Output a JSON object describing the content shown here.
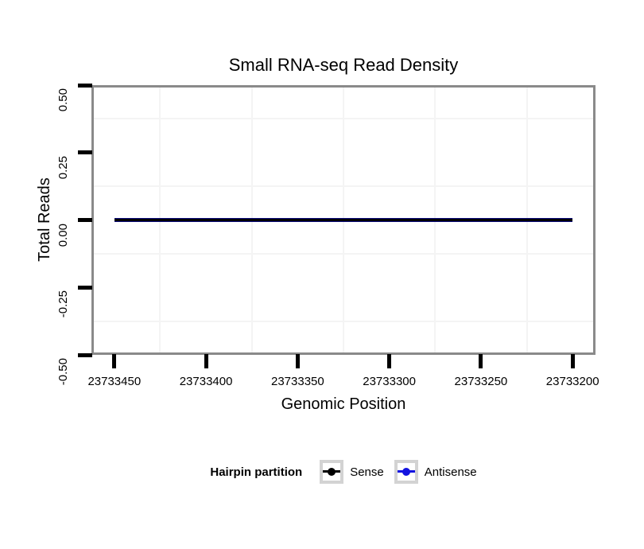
{
  "title": "Small RNA-seq Read Density",
  "chart_data": {
    "type": "line",
    "title": "Small RNA-seq Read Density",
    "xlabel": "Genomic Position",
    "ylabel": "Total Reads",
    "x_reversed": true,
    "x_domain": [
      23733462.5,
      23733187.5
    ],
    "y_domain": [
      0.5,
      -0.5
    ],
    "x_ticks": [
      {
        "value": 23733450,
        "label": "23733450"
      },
      {
        "value": 23733400,
        "label": "23733400"
      },
      {
        "value": 23733350,
        "label": "23733350"
      },
      {
        "value": 23733300,
        "label": "23733300"
      },
      {
        "value": 23733250,
        "label": "23733250"
      },
      {
        "value": 23733200,
        "label": "23733200"
      }
    ],
    "y_ticks": [
      {
        "value": 0.5,
        "label": "0.50"
      },
      {
        "value": 0.25,
        "label": "0.25"
      },
      {
        "value": 0.0,
        "label": "0.00"
      },
      {
        "value": -0.25,
        "label": "-0.25"
      },
      {
        "value": -0.5,
        "label": "-0.50"
      }
    ],
    "grid": "minor-only",
    "legend_position": "bottom",
    "series": [
      {
        "name": "Sense",
        "color": "#000000",
        "x": [
          23733450,
          23733200
        ],
        "y": [
          0,
          0
        ]
      },
      {
        "name": "Antisense",
        "color": "#1313e0",
        "x": [
          23733450,
          23733200
        ],
        "y": [
          0,
          0
        ]
      }
    ]
  },
  "legend": {
    "title": "Hairpin partition",
    "items": [
      {
        "label": "Sense",
        "color": "#000000"
      },
      {
        "label": "Antisense",
        "color": "#1313e0"
      }
    ]
  },
  "colors": {
    "panel_border": "#8a8a8a",
    "grid_minor": "#f4f4f4",
    "tick": "#000000",
    "legend_key_border": "#d3d3d3"
  }
}
